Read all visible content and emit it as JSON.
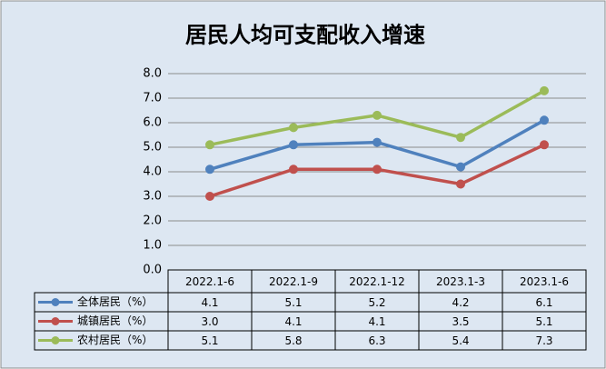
{
  "chart_data": {
    "type": "line",
    "title": "居民人均可支配收入增速",
    "categories": [
      "2022.1-6",
      "2022.1-9",
      "2022.1-12",
      "2023.1-3",
      "2023.1-6"
    ],
    "series": [
      {
        "name": "全体居民（%）",
        "color": "#4f81bd",
        "values": [
          4.1,
          5.1,
          5.2,
          4.2,
          6.1
        ],
        "value_labels": [
          "4.1",
          "5.1",
          "5.2",
          "4.2",
          "6.1"
        ]
      },
      {
        "name": "城镇居民（%）",
        "color": "#c0504d",
        "values": [
          3.0,
          4.1,
          4.1,
          3.5,
          5.1
        ],
        "value_labels": [
          "3.0",
          "4.1",
          "4.1",
          "3.5",
          "5.1"
        ]
      },
      {
        "name": "农村居民（%）",
        "color": "#9bbb59",
        "values": [
          5.1,
          5.8,
          6.3,
          5.4,
          7.3
        ],
        "value_labels": [
          "5.1",
          "5.8",
          "6.3",
          "5.4",
          "7.3"
        ]
      }
    ],
    "ylim": [
      0,
      8
    ],
    "yticks": [
      {
        "value": 0,
        "label": "0.0"
      },
      {
        "value": 1,
        "label": "1.0"
      },
      {
        "value": 2,
        "label": "2.0"
      },
      {
        "value": 3,
        "label": "3.0"
      },
      {
        "value": 4,
        "label": "4.0"
      },
      {
        "value": 5,
        "label": "5.0"
      },
      {
        "value": 6,
        "label": "6.0"
      },
      {
        "value": 7,
        "label": "7.0"
      },
      {
        "value": 8,
        "label": "8.0"
      }
    ],
    "grid": true
  }
}
